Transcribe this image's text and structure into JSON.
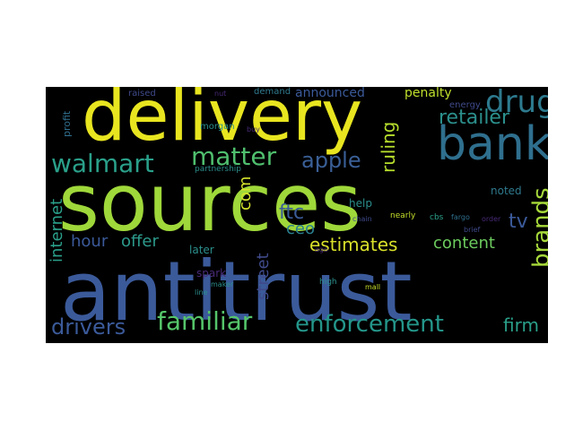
{
  "word_cloud": {
    "background": "#000000",
    "words": [
      {
        "text": "antitrust",
        "color": "#3b5a9a"
      },
      {
        "text": "sources",
        "color": "#9fd83a"
      },
      {
        "text": "delivery",
        "color": "#e8e520"
      },
      {
        "text": "bank",
        "color": "#2f6f8e"
      },
      {
        "text": "walmart",
        "color": "#2aa08a"
      },
      {
        "text": "matter",
        "color": "#4fbf6e"
      },
      {
        "text": "apple",
        "color": "#3a5f96"
      },
      {
        "text": "drug",
        "color": "#2d7a8e"
      },
      {
        "text": "retailer",
        "color": "#2b8f8c"
      },
      {
        "text": "familiar",
        "color": "#55c56a"
      },
      {
        "text": "enforcement",
        "color": "#24968a"
      },
      {
        "text": "drivers",
        "color": "#3b5a9a"
      },
      {
        "text": "ruling",
        "color": "#b7de2c"
      },
      {
        "text": "brands",
        "color": "#a7d93a"
      },
      {
        "text": "tv",
        "color": "#3b5a9a"
      },
      {
        "text": "estimates",
        "color": "#d9e12a"
      },
      {
        "text": "content",
        "color": "#6ccc5e"
      },
      {
        "text": "ftc",
        "color": "#3a5b96"
      },
      {
        "text": "ceo",
        "color": "#2a7f8e"
      },
      {
        "text": "com",
        "color": "#d4e22b"
      },
      {
        "text": "hour",
        "color": "#3b5a9a"
      },
      {
        "text": "offer",
        "color": "#2c9a8b"
      },
      {
        "text": "internet",
        "color": "#2aa08a"
      },
      {
        "text": "street",
        "color": "#3f4a8a"
      },
      {
        "text": "firm",
        "color": "#2aa08a"
      },
      {
        "text": "announced",
        "color": "#3b5a9a"
      },
      {
        "text": "penalty",
        "color": "#bfe02c"
      },
      {
        "text": "noted",
        "color": "#2f7a8e"
      },
      {
        "text": "help",
        "color": "#2b8f8c"
      },
      {
        "text": "later",
        "color": "#2b8f8c"
      },
      {
        "text": "spark",
        "color": "#482a78"
      },
      {
        "text": "profit",
        "color": "#2f6f8e"
      },
      {
        "text": "energy",
        "color": "#3f4a8a"
      },
      {
        "text": "raised",
        "color": "#3f4a8a"
      },
      {
        "text": "nut",
        "color": "#482a78"
      },
      {
        "text": "demand",
        "color": "#2f7a8e"
      },
      {
        "text": "buy",
        "color": "#482a78"
      },
      {
        "text": "morgan",
        "color": "#2b8f8c"
      },
      {
        "text": "partnership",
        "color": "#2b8f8c"
      },
      {
        "text": "fargo",
        "color": "#2f6f8e"
      },
      {
        "text": "order",
        "color": "#482a78"
      },
      {
        "text": "chain",
        "color": "#3f4a8a"
      },
      {
        "text": "nearly",
        "color": "#c7df2a"
      },
      {
        "text": "cbs",
        "color": "#2aa08a"
      },
      {
        "text": "brief",
        "color": "#3f4a8a"
      },
      {
        "text": "ago",
        "color": "#482a78"
      },
      {
        "text": "high",
        "color": "#2b8f8c"
      },
      {
        "text": "mall",
        "color": "#c7df2a"
      },
      {
        "text": "maker",
        "color": "#2b8f8c"
      },
      {
        "text": "line",
        "color": "#2b8f8c"
      }
    ]
  }
}
